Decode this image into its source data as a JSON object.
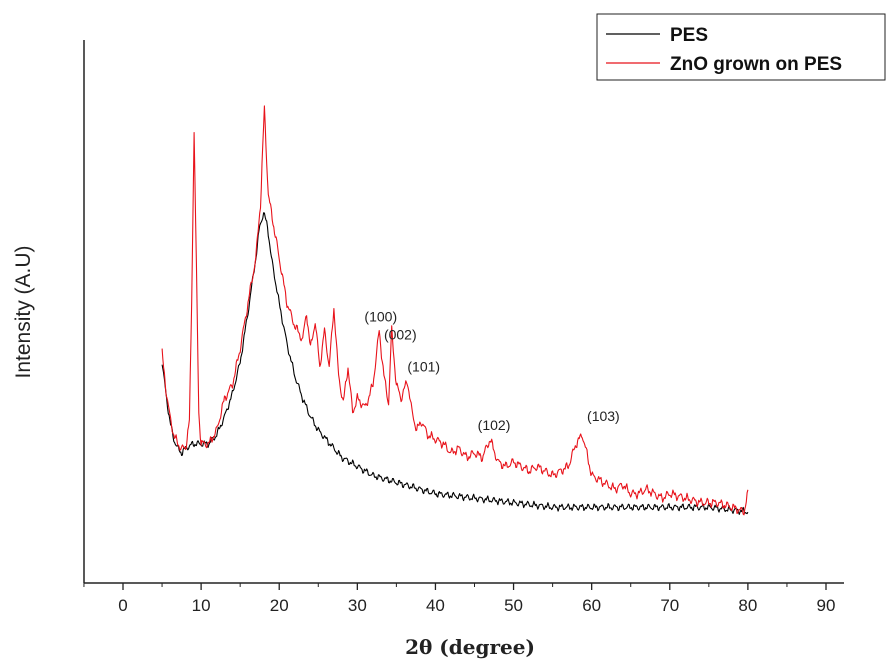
{
  "chart_data": {
    "type": "line",
    "title": "",
    "xlabel": "2θ (degree)",
    "ylabel": "Intensity (A.U)",
    "xlim": [
      -5,
      90
    ],
    "ylim": [
      0,
      100
    ],
    "xticks": [
      0,
      10,
      20,
      30,
      40,
      50,
      60,
      70,
      80,
      90
    ],
    "yticks_shown": false,
    "grid": false,
    "legend_position": "top-right",
    "series": [
      {
        "name": "PES",
        "color": "#000000",
        "points": [
          [
            5.0,
            41
          ],
          [
            5.5,
            34
          ],
          [
            6.0,
            28
          ],
          [
            6.5,
            24
          ],
          [
            7.0,
            22
          ],
          [
            7.5,
            21
          ],
          [
            8.0,
            22
          ],
          [
            9.0,
            23
          ],
          [
            10.0,
            23
          ],
          [
            11.0,
            23
          ],
          [
            12.0,
            25
          ],
          [
            13.0,
            29
          ],
          [
            14.0,
            34
          ],
          [
            15.0,
            41
          ],
          [
            16.0,
            52
          ],
          [
            17.0,
            64
          ],
          [
            17.5,
            71
          ],
          [
            18.0,
            74
          ],
          [
            18.5,
            71
          ],
          [
            19.0,
            64
          ],
          [
            20.0,
            54
          ],
          [
            21.0,
            45
          ],
          [
            22.0,
            38
          ],
          [
            23.0,
            33
          ],
          [
            24.0,
            29
          ],
          [
            25.0,
            26
          ],
          [
            26.0,
            24
          ],
          [
            27.0,
            22
          ],
          [
            28.0,
            20
          ],
          [
            29.0,
            19
          ],
          [
            30.0,
            18
          ],
          [
            32.0,
            16
          ],
          [
            34.0,
            15
          ],
          [
            36.0,
            14
          ],
          [
            38.0,
            13
          ],
          [
            40.0,
            12
          ],
          [
            45.0,
            11
          ],
          [
            50.0,
            10
          ],
          [
            55.0,
            9
          ],
          [
            60.0,
            9
          ],
          [
            65.0,
            9
          ],
          [
            70.0,
            9
          ],
          [
            75.0,
            9
          ],
          [
            80.0,
            8
          ]
        ]
      },
      {
        "name": "ZnO grown on PES",
        "color": "#e8131b",
        "points": [
          [
            5.0,
            43
          ],
          [
            5.5,
            35
          ],
          [
            6.0,
            29
          ],
          [
            6.5,
            25
          ],
          [
            7.0,
            23
          ],
          [
            7.5,
            22
          ],
          [
            8.0,
            22
          ],
          [
            8.5,
            28
          ],
          [
            8.8,
            55
          ],
          [
            9.1,
            92
          ],
          [
            9.4,
            62
          ],
          [
            9.7,
            30
          ],
          [
            10.0,
            23
          ],
          [
            11.0,
            23
          ],
          [
            12.0,
            26
          ],
          [
            13.0,
            33
          ],
          [
            14.0,
            36
          ],
          [
            15.0,
            44
          ],
          [
            16.0,
            54
          ],
          [
            17.0,
            64
          ],
          [
            17.6,
            76
          ],
          [
            18.1,
            97
          ],
          [
            18.6,
            78
          ],
          [
            19.2,
            72
          ],
          [
            20.0,
            64
          ],
          [
            21.0,
            54
          ],
          [
            22.0,
            49
          ],
          [
            23.0,
            46
          ],
          [
            23.5,
            52
          ],
          [
            24.0,
            44
          ],
          [
            24.6,
            50
          ],
          [
            25.2,
            40
          ],
          [
            25.8,
            48
          ],
          [
            26.4,
            40
          ],
          [
            27.0,
            53
          ],
          [
            27.6,
            38
          ],
          [
            28.2,
            32
          ],
          [
            28.8,
            40
          ],
          [
            29.4,
            30
          ],
          [
            30.0,
            33
          ],
          [
            31.0,
            31
          ],
          [
            32.0,
            36
          ],
          [
            32.8,
            48
          ],
          [
            33.4,
            38
          ],
          [
            34.0,
            32
          ],
          [
            34.4,
            48
          ],
          [
            35.0,
            36
          ],
          [
            35.6,
            33
          ],
          [
            36.4,
            37
          ],
          [
            37.0,
            30
          ],
          [
            37.6,
            26
          ],
          [
            38.2,
            28
          ],
          [
            39.0,
            25
          ],
          [
            40.0,
            24
          ],
          [
            41.0,
            23
          ],
          [
            42.0,
            21
          ],
          [
            43.0,
            22
          ],
          [
            44.0,
            20
          ],
          [
            45.0,
            21
          ],
          [
            46.0,
            20
          ],
          [
            47.0,
            24
          ],
          [
            48.0,
            19
          ],
          [
            49.0,
            18
          ],
          [
            50.0,
            19
          ],
          [
            51.0,
            18
          ],
          [
            52.0,
            17
          ],
          [
            53.0,
            18
          ],
          [
            54.0,
            17
          ],
          [
            55.0,
            16
          ],
          [
            56.0,
            17
          ],
          [
            57.0,
            18
          ],
          [
            58.0,
            23
          ],
          [
            58.8,
            25
          ],
          [
            59.5,
            20
          ],
          [
            60.0,
            16
          ],
          [
            61.0,
            15
          ],
          [
            62.0,
            14
          ],
          [
            63.0,
            13
          ],
          [
            64.0,
            14
          ],
          [
            65.0,
            12
          ],
          [
            66.0,
            12
          ],
          [
            67.0,
            13
          ],
          [
            68.0,
            12
          ],
          [
            69.0,
            11
          ],
          [
            70.0,
            12
          ],
          [
            72.0,
            11
          ],
          [
            74.0,
            10
          ],
          [
            76.0,
            10
          ],
          [
            78.0,
            9
          ],
          [
            79.5,
            8
          ],
          [
            80.0,
            12
          ]
        ]
      }
    ],
    "annotations": [
      {
        "text": "(100)",
        "x": 33.0,
        "y": 50
      },
      {
        "text": "(002)",
        "x": 35.5,
        "y": 46
      },
      {
        "text": "(101)",
        "x": 38.5,
        "y": 39
      },
      {
        "text": "(102)",
        "x": 47.5,
        "y": 26
      },
      {
        "text": "(103)",
        "x": 61.5,
        "y": 28
      }
    ],
    "legend": {
      "entries": [
        {
          "label": "PES",
          "color": "#000000"
        },
        {
          "label": "ZnO grown on PES",
          "color": "#e8131b"
        }
      ]
    }
  }
}
